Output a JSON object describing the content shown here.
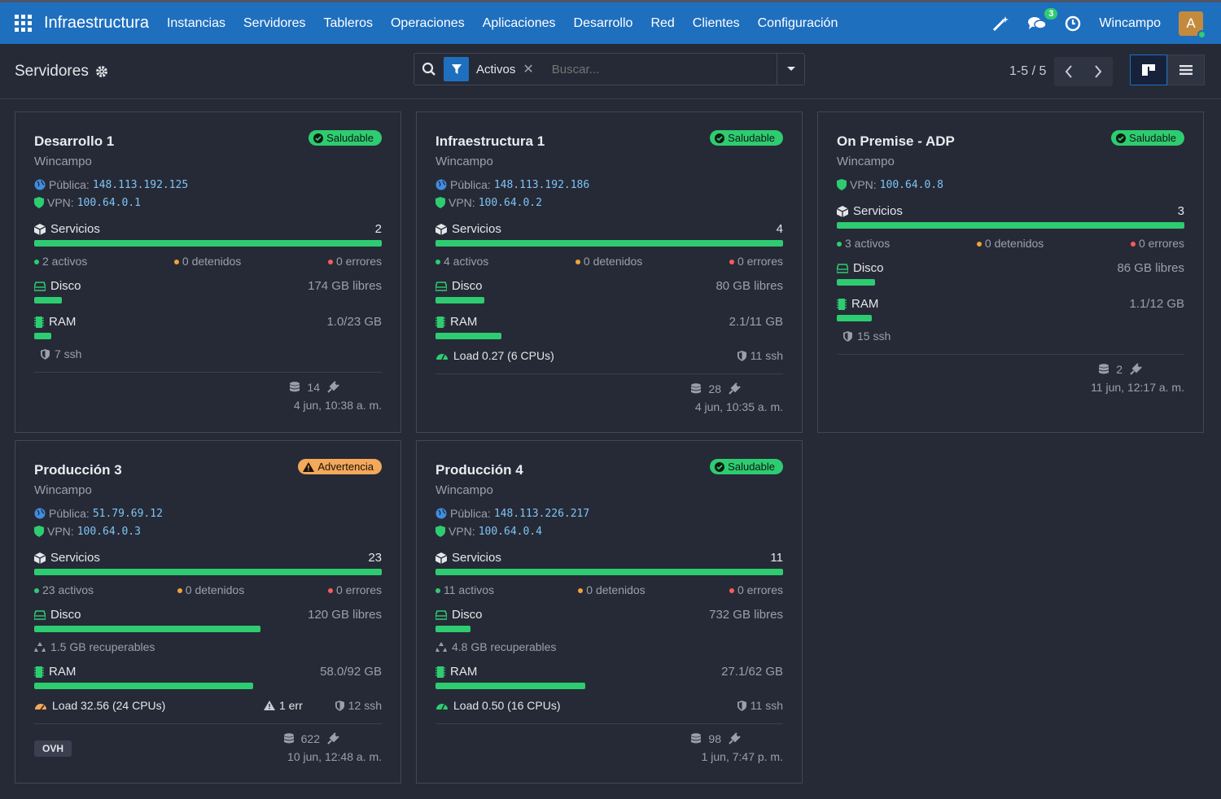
{
  "topbar": {
    "app_title": "Infraestructura",
    "menu": [
      "Instancias",
      "Servidores",
      "Tableros",
      "Operaciones",
      "Aplicaciones",
      "Desarrollo",
      "Red",
      "Clientes",
      "Configuración"
    ],
    "chat_count": "3",
    "company": "Wincampo",
    "avatar_letter": "A"
  },
  "control": {
    "breadcrumb": "Servidores",
    "facet_label": "Activos",
    "search_placeholder": "Buscar...",
    "pager": "1-5 / 5"
  },
  "cards": [
    {
      "title": "Desarrollo 1",
      "status": "Saludable",
      "company": "Wincampo",
      "public_label": "Pública:",
      "public_ip": "148.113.192.125",
      "vpn_label": "VPN:",
      "vpn_ip": "100.64.0.1",
      "services_label": "Servicios",
      "services_count": "2",
      "active": "2 activos",
      "stopped": "0 detenidos",
      "errors": "0 errores",
      "disk_label": "Disco",
      "disk_free": "174 GB libres",
      "disk_fill": 0.08,
      "ram_label": "RAM",
      "ram_value": "1.0/23 GB",
      "ram_fill": 0.05,
      "ssh": "7 ssh",
      "db_count": "14",
      "date": "4 jun, 10:38 a. m."
    },
    {
      "title": "Infraestructura 1",
      "status": "Saludable",
      "company": "Wincampo",
      "public_label": "Pública:",
      "public_ip": "148.113.192.186",
      "vpn_label": "VPN:",
      "vpn_ip": "100.64.0.2",
      "services_label": "Servicios",
      "services_count": "4",
      "active": "4 activos",
      "stopped": "0 detenidos",
      "errors": "0 errores",
      "disk_label": "Disco",
      "disk_free": "80 GB libres",
      "disk_fill": 0.14,
      "ram_label": "RAM",
      "ram_value": "2.1/11 GB",
      "ram_fill": 0.19,
      "load": "Load 0.27 (6 CPUs)",
      "ssh": "11 ssh",
      "db_count": "28",
      "date": "4 jun, 10:35 a. m."
    },
    {
      "title": "On Premise - ADP",
      "status": "Saludable",
      "company": "Wincampo",
      "vpn_label": "VPN:",
      "vpn_ip": "100.64.0.8",
      "services_label": "Servicios",
      "services_count": "3",
      "active": "3 activos",
      "stopped": "0 detenidos",
      "errors": "0 errores",
      "disk_label": "Disco",
      "disk_free": "86 GB libres",
      "disk_fill": 0.11,
      "ram_label": "RAM",
      "ram_value": "1.1/12 GB",
      "ram_fill": 0.1,
      "ssh": "15 ssh",
      "db_count": "2",
      "date": "11 jun, 12:17 a. m."
    },
    {
      "title": "Producción 3",
      "status": "Advertencia",
      "company": "Wincampo",
      "public_label": "Pública:",
      "public_ip": "51.79.69.12",
      "vpn_label": "VPN:",
      "vpn_ip": "100.64.0.3",
      "services_label": "Servicios",
      "services_count": "23",
      "active": "23 activos",
      "stopped": "0 detenidos",
      "errors": "0 errores",
      "disk_label": "Disco",
      "disk_free": "120 GB libres",
      "disk_fill": 0.65,
      "recoverable": "1.5 GB recuperables",
      "ram_label": "RAM",
      "ram_value": "58.0/92 GB",
      "ram_fill": 0.63,
      "load": "Load 32.56 (24 CPUs)",
      "err": "1 err",
      "ssh": "12 ssh",
      "tag": "OVH",
      "db_count": "622",
      "date": "10 jun, 12:48 a. m."
    },
    {
      "title": "Producción 4",
      "status": "Saludable",
      "company": "Wincampo",
      "public_label": "Pública:",
      "public_ip": "148.113.226.217",
      "vpn_label": "VPN:",
      "vpn_ip": "100.64.0.4",
      "services_label": "Servicios",
      "services_count": "11",
      "active": "11 activos",
      "stopped": "0 detenidos",
      "errors": "0 errores",
      "disk_label": "Disco",
      "disk_free": "732 GB libres",
      "disk_fill": 0.1,
      "recoverable": "4.8 GB recuperables",
      "ram_label": "RAM",
      "ram_value": "27.1/62 GB",
      "ram_fill": 0.43,
      "load": "Load 0.50 (16 CPUs)",
      "ssh": "11 ssh",
      "db_count": "98",
      "date": "1 jun, 7:47 p. m."
    }
  ]
}
